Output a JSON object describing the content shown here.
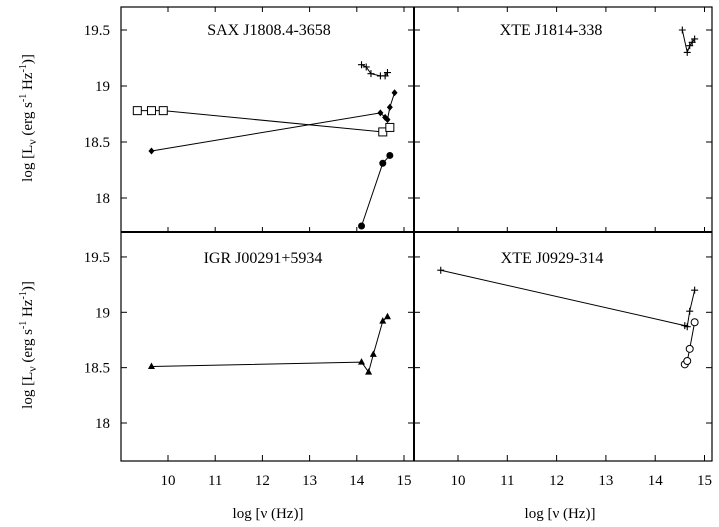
{
  "chart_data": [
    {
      "type": "line",
      "title": "SAX J1808.4-3658",
      "xlabel": "log [ν (Hz)]",
      "ylabel": "log [Lν (erg s⁻¹ Hz⁻¹)]",
      "xlim": [
        9,
        15.1
      ],
      "ylim": [
        17.7,
        19.7
      ],
      "series": [
        {
          "marker": "plus",
          "x": [
            14.1,
            14.2,
            14.3,
            14.5,
            14.6,
            14.65
          ],
          "y": [
            19.19,
            19.17,
            19.11,
            19.09,
            19.09,
            19.12
          ]
        },
        {
          "marker": "open-square",
          "x": [
            9.35,
            9.65,
            9.9,
            14.55,
            14.7
          ],
          "y": [
            18.78,
            18.78,
            18.78,
            18.59,
            18.63
          ]
        },
        {
          "marker": "diamond",
          "x": [
            9.65,
            14.5,
            14.6,
            14.65,
            14.7,
            14.8
          ],
          "y": [
            18.42,
            18.76,
            18.72,
            18.7,
            18.81,
            18.94
          ]
        },
        {
          "marker": "filled-circle",
          "x": [
            14.1,
            14.55,
            14.7
          ],
          "y": [
            17.75,
            18.31,
            18.38
          ]
        }
      ]
    },
    {
      "type": "line",
      "title": "XTE J1814-338",
      "xlabel": "log [ν (Hz)]",
      "xlim": [
        9,
        15.1
      ],
      "ylim": [
        17.7,
        19.7
      ],
      "series": [
        {
          "marker": "plus",
          "x": [
            14.55,
            14.65,
            14.7,
            14.75,
            14.8
          ],
          "y": [
            19.5,
            19.3,
            19.36,
            19.39,
            19.42
          ]
        }
      ]
    },
    {
      "type": "line",
      "title": "IGR J00291+5934",
      "xlabel": "log [ν (Hz)]",
      "ylabel": "log [Lν (erg s⁻¹ Hz⁻¹)]",
      "xlim": [
        9,
        15.1
      ],
      "ylim": [
        17.2,
        19.7
      ],
      "series": [
        {
          "marker": "triangle",
          "x": [
            9.65,
            14.1,
            14.25,
            14.35,
            14.55,
            14.65
          ],
          "y": [
            18.51,
            18.55,
            18.46,
            18.62,
            18.92,
            18.96
          ]
        }
      ]
    },
    {
      "type": "line",
      "title": "XTE J0929-314",
      "xlabel": "log [ν (Hz)]",
      "xlim": [
        9,
        15.1
      ],
      "ylim": [
        17.2,
        19.7
      ],
      "series": [
        {
          "marker": "plus",
          "x": [
            9.65,
            14.6,
            14.65,
            14.7,
            14.8
          ],
          "y": [
            19.38,
            18.88,
            18.87,
            19.01,
            19.2
          ]
        },
        {
          "marker": "open-circle",
          "x": [
            14.6,
            14.65,
            14.7,
            14.8
          ],
          "y": [
            18.53,
            18.56,
            18.67,
            18.91
          ]
        }
      ]
    }
  ],
  "axes": {
    "x_ticks": [
      "10",
      "11",
      "12",
      "13",
      "14",
      "15"
    ],
    "y_ticks_top": [
      "18",
      "18.5",
      "19",
      "19.5"
    ],
    "y_ticks_bottom": [
      "18",
      "18.5",
      "19",
      "19.5"
    ],
    "ylabel_main": "log [L",
    "ylabel_sub": "ν",
    "ylabel_mid": " (erg s",
    "ylabel_sup1": "-1",
    "ylabel_hz": " Hz",
    "ylabel_sup2": "-1",
    "ylabel_end": ")]",
    "xlabel": "log [ν (Hz)]"
  }
}
